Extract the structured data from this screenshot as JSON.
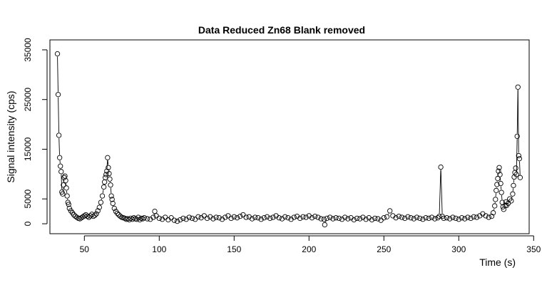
{
  "chart_data": {
    "type": "line",
    "title": "Data Reduced Zn68 Blank removed",
    "xlabel": "Time (s)",
    "ylabel": "Signal intensity (cps)",
    "xlim": [
      27,
      347
    ],
    "ylim": [
      -2000,
      37000
    ],
    "x_ticks": [
      50,
      100,
      150,
      200,
      250,
      300,
      350
    ],
    "y_ticks": [
      0,
      5000,
      15000,
      25000,
      35000
    ],
    "x_tick_labels": [
      "50",
      "100",
      "150",
      "200",
      "250",
      "300",
      "350"
    ],
    "y_tick_labels": [
      "0",
      "5000",
      "15000",
      "25000",
      "35000"
    ],
    "marker": "open-circle",
    "grid": false,
    "series": [
      {
        "points": [
          [
            32,
            34200
          ],
          [
            32.5,
            26000
          ],
          [
            33,
            17800
          ],
          [
            33.5,
            13300
          ],
          [
            34,
            11600
          ],
          [
            34.5,
            10500
          ],
          [
            35,
            6400
          ],
          [
            35.5,
            6000
          ],
          [
            36,
            7800
          ],
          [
            36.5,
            9300
          ],
          [
            37,
            9600
          ],
          [
            37.5,
            8700
          ],
          [
            38,
            7200
          ],
          [
            38.5,
            5600
          ],
          [
            39,
            4300
          ],
          [
            39.5,
            3900
          ],
          [
            40,
            3100
          ],
          [
            41,
            2600
          ],
          [
            42,
            2200
          ],
          [
            43,
            1800
          ],
          [
            44,
            1500
          ],
          [
            45,
            1300
          ],
          [
            46,
            1100
          ],
          [
            47,
            1000
          ],
          [
            48,
            1200
          ],
          [
            49,
            1400
          ],
          [
            50,
            1600
          ],
          [
            51,
            1800
          ],
          [
            52,
            1500
          ],
          [
            53,
            1300
          ],
          [
            54,
            1600
          ],
          [
            55,
            1900
          ],
          [
            56,
            1500
          ],
          [
            57,
            1700
          ],
          [
            58,
            2000
          ],
          [
            59,
            2600
          ],
          [
            60,
            3300
          ],
          [
            61,
            4300
          ],
          [
            62,
            5600
          ],
          [
            63,
            7400
          ],
          [
            63.5,
            8400
          ],
          [
            64,
            9300
          ],
          [
            64.5,
            9900
          ],
          [
            65,
            10600
          ],
          [
            65.5,
            13300
          ],
          [
            66,
            11300
          ],
          [
            66.5,
            10100
          ],
          [
            67,
            9000
          ],
          [
            67.5,
            7800
          ],
          [
            68,
            5600
          ],
          [
            68.5,
            4900
          ],
          [
            69,
            4100
          ],
          [
            70,
            3100
          ],
          [
            71,
            2500
          ],
          [
            72,
            2100
          ],
          [
            73,
            1800
          ],
          [
            74,
            1500
          ],
          [
            75,
            1300
          ],
          [
            76,
            1200
          ],
          [
            77,
            1100
          ],
          [
            78,
            900
          ],
          [
            79,
            1000
          ],
          [
            80,
            800
          ],
          [
            81,
            1100
          ],
          [
            82,
            900
          ],
          [
            83,
            1200
          ],
          [
            84,
            1000
          ],
          [
            85,
            900
          ],
          [
            86,
            1300
          ],
          [
            87,
            800
          ],
          [
            88,
            1100
          ],
          [
            89,
            1000
          ],
          [
            90,
            1200
          ],
          [
            92,
            1000
          ],
          [
            94,
            900
          ],
          [
            96,
            1300
          ],
          [
            97,
            2500
          ],
          [
            98,
            1600
          ],
          [
            100,
            1100
          ],
          [
            102,
            900
          ],
          [
            104,
            1300
          ],
          [
            106,
            800
          ],
          [
            108,
            1200
          ],
          [
            110,
            700
          ],
          [
            112,
            500
          ],
          [
            114,
            800
          ],
          [
            116,
            1100
          ],
          [
            118,
            900
          ],
          [
            120,
            1300
          ],
          [
            122,
            1100
          ],
          [
            124,
            900
          ],
          [
            126,
            1400
          ],
          [
            128,
            1200
          ],
          [
            130,
            1600
          ],
          [
            132,
            1100
          ],
          [
            134,
            1400
          ],
          [
            136,
            1000
          ],
          [
            138,
            1300
          ],
          [
            140,
            1200
          ],
          [
            142,
            900
          ],
          [
            144,
            1300
          ],
          [
            146,
            1600
          ],
          [
            148,
            1100
          ],
          [
            150,
            1400
          ],
          [
            152,
            1200
          ],
          [
            154,
            1500
          ],
          [
            156,
            1800
          ],
          [
            158,
            1300
          ],
          [
            160,
            1400
          ],
          [
            162,
            1000
          ],
          [
            164,
            1300
          ],
          [
            166,
            1200
          ],
          [
            168,
            900
          ],
          [
            170,
            1200
          ],
          [
            172,
            1400
          ],
          [
            174,
            1100
          ],
          [
            176,
            1300
          ],
          [
            178,
            1600
          ],
          [
            180,
            1200
          ],
          [
            182,
            1000
          ],
          [
            184,
            1400
          ],
          [
            186,
            1200
          ],
          [
            188,
            900
          ],
          [
            190,
            1300
          ],
          [
            192,
            1500
          ],
          [
            194,
            1100
          ],
          [
            196,
            1400
          ],
          [
            198,
            1300
          ],
          [
            200,
            1600
          ],
          [
            202,
            1200
          ],
          [
            204,
            1500
          ],
          [
            206,
            1300
          ],
          [
            208,
            1000
          ],
          [
            210,
            900
          ],
          [
            210.5,
            -200
          ],
          [
            212,
            1100
          ],
          [
            214,
            1300
          ],
          [
            216,
            1000
          ],
          [
            218,
            1200
          ],
          [
            220,
            1100
          ],
          [
            222,
            900
          ],
          [
            224,
            1300
          ],
          [
            226,
            1000
          ],
          [
            228,
            1200
          ],
          [
            230,
            800
          ],
          [
            232,
            1100
          ],
          [
            234,
            1000
          ],
          [
            236,
            1300
          ],
          [
            238,
            900
          ],
          [
            240,
            1200
          ],
          [
            242,
            800
          ],
          [
            244,
            1100
          ],
          [
            246,
            1000
          ],
          [
            248,
            700
          ],
          [
            250,
            1200
          ],
          [
            252,
            1400
          ],
          [
            254,
            2600
          ],
          [
            256,
            1600
          ],
          [
            258,
            1200
          ],
          [
            260,
            1500
          ],
          [
            262,
            1300
          ],
          [
            264,
            1100
          ],
          [
            266,
            1400
          ],
          [
            268,
            1200
          ],
          [
            270,
            1000
          ],
          [
            272,
            1300
          ],
          [
            274,
            1100
          ],
          [
            276,
            900
          ],
          [
            278,
            1200
          ],
          [
            280,
            1100
          ],
          [
            282,
            1300
          ],
          [
            284,
            1000
          ],
          [
            286,
            1200
          ],
          [
            287,
            1500
          ],
          [
            288,
            11400
          ],
          [
            289,
            1500
          ],
          [
            290,
            1100
          ],
          [
            292,
            1200
          ],
          [
            294,
            1000
          ],
          [
            296,
            1300
          ],
          [
            298,
            1100
          ],
          [
            300,
            900
          ],
          [
            302,
            1200
          ],
          [
            304,
            1000
          ],
          [
            306,
            1300
          ],
          [
            308,
            1100
          ],
          [
            310,
            1400
          ],
          [
            312,
            1300
          ],
          [
            314,
            1600
          ],
          [
            316,
            2000
          ],
          [
            318,
            1600
          ],
          [
            320,
            1300
          ],
          [
            322,
            1500
          ],
          [
            323,
            2200
          ],
          [
            324,
            3600
          ],
          [
            324.5,
            4900
          ],
          [
            325,
            6700
          ],
          [
            325.5,
            7900
          ],
          [
            326,
            9100
          ],
          [
            326.5,
            10600
          ],
          [
            327,
            11300
          ],
          [
            327.5,
            9900
          ],
          [
            328,
            8100
          ],
          [
            328.5,
            6300
          ],
          [
            329,
            4300
          ],
          [
            329.5,
            3400
          ],
          [
            330,
            2900
          ],
          [
            331,
            3700
          ],
          [
            331.5,
            4400
          ],
          [
            332,
            3700
          ],
          [
            333,
            4100
          ],
          [
            334,
            5000
          ],
          [
            335,
            4600
          ],
          [
            336,
            6000
          ],
          [
            336.5,
            7700
          ],
          [
            337,
            9400
          ],
          [
            337.5,
            10300
          ],
          [
            338,
            11200
          ],
          [
            338.5,
            9900
          ],
          [
            339,
            17600
          ],
          [
            339.5,
            27500
          ],
          [
            340,
            13700
          ],
          [
            340.5,
            13100
          ],
          [
            341,
            9300
          ]
        ]
      }
    ]
  }
}
